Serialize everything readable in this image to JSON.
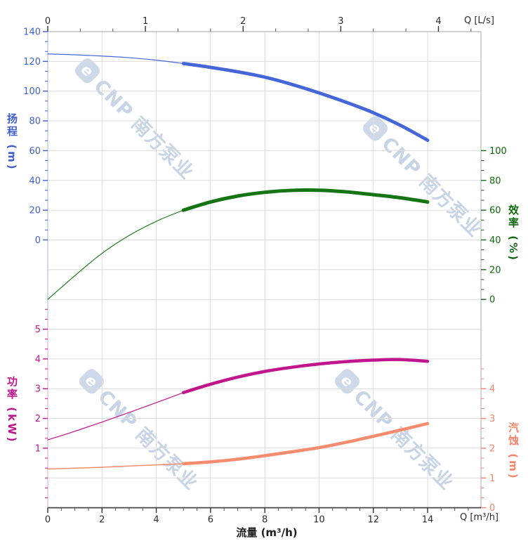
{
  "axes": {
    "top": {
      "label": "Q [L/s]",
      "majors": [
        0,
        1,
        2,
        3,
        4
      ],
      "color": "#2a2a2a"
    },
    "bottom": {
      "label": "Q [m³/h]",
      "majors": [
        0,
        2,
        4,
        6,
        8,
        10,
        12,
        14
      ],
      "axis_label": "流量 (m³/h)",
      "color": "#2a2a2a"
    },
    "head": {
      "title": "扬程 (m)",
      "majors": [
        140,
        120,
        100,
        80,
        60,
        40,
        20,
        0
      ],
      "color": "#3f5fd1"
    },
    "eff": {
      "title": "效率 (%)",
      "majors": [
        100,
        80,
        60,
        40,
        20,
        0
      ],
      "color": "#10680f"
    },
    "power": {
      "title": "功率 (kW)",
      "majors": [
        5,
        4,
        3,
        2,
        1
      ],
      "color": "#c0148c"
    },
    "npsh": {
      "title": "汽蚀 (m)",
      "majors": [
        4,
        3,
        2,
        1,
        0
      ],
      "color": "#f5846a"
    }
  },
  "watermark": {
    "logo": "e",
    "text": "CNP 南方泵业"
  },
  "chart_data": [
    {
      "type": "line",
      "name": "扬程",
      "yaxis": "head",
      "color": "#4466d9",
      "units": "m",
      "thick_from": 5,
      "ylim": [
        0,
        140
      ],
      "x": [
        0,
        1,
        2,
        3,
        4,
        5,
        6,
        7,
        8,
        9,
        10,
        11,
        12,
        13,
        14
      ],
      "values": [
        125,
        124.4,
        123.6,
        122.5,
        120.8,
        118.6,
        116,
        113,
        109.4,
        104.5,
        98.8,
        92.5,
        85.5,
        77,
        67
      ]
    },
    {
      "type": "line",
      "name": "效率",
      "yaxis": "eff",
      "color": "#157515",
      "units": "%",
      "thick_from": 5,
      "ylim": [
        0,
        100
      ],
      "x": [
        0,
        1,
        2,
        3,
        4,
        5,
        6,
        7,
        8,
        9,
        10,
        11,
        12,
        13,
        14
      ],
      "values": [
        0,
        16,
        31,
        43,
        52.5,
        60,
        65.5,
        69.5,
        72,
        73.3,
        73.4,
        72.3,
        70.4,
        68.3,
        65.5
      ]
    },
    {
      "type": "line",
      "name": "功率",
      "yaxis": "power",
      "color": "#c0158c",
      "units": "kW",
      "thick_from": 5,
      "ylim": [
        1,
        5
      ],
      "x": [
        0,
        1,
        2,
        3,
        4,
        5,
        6,
        7,
        8,
        9,
        10,
        11,
        12,
        13,
        14
      ],
      "values": [
        1.28,
        1.57,
        1.88,
        2.2,
        2.53,
        2.87,
        3.15,
        3.39,
        3.58,
        3.72,
        3.83,
        3.91,
        3.96,
        3.98,
        3.92
      ]
    },
    {
      "type": "line",
      "name": "汽蚀",
      "yaxis": "npsh",
      "color": "#f78b6e",
      "units": "m",
      "thick_from": 5,
      "ylim": [
        0,
        4
      ],
      "x": [
        0,
        1,
        2,
        3,
        4,
        5,
        6,
        7,
        8,
        9,
        10,
        11,
        12,
        13,
        14
      ],
      "values": [
        1.3,
        1.33,
        1.36,
        1.4,
        1.44,
        1.48,
        1.54,
        1.63,
        1.75,
        1.88,
        2.02,
        2.2,
        2.4,
        2.61,
        2.83
      ]
    }
  ],
  "xaxis": {
    "xlabel_m3h": "流量 (m³/h)",
    "range_m3h": [
      0,
      14
    ],
    "range_ls": [
      0,
      4
    ]
  }
}
